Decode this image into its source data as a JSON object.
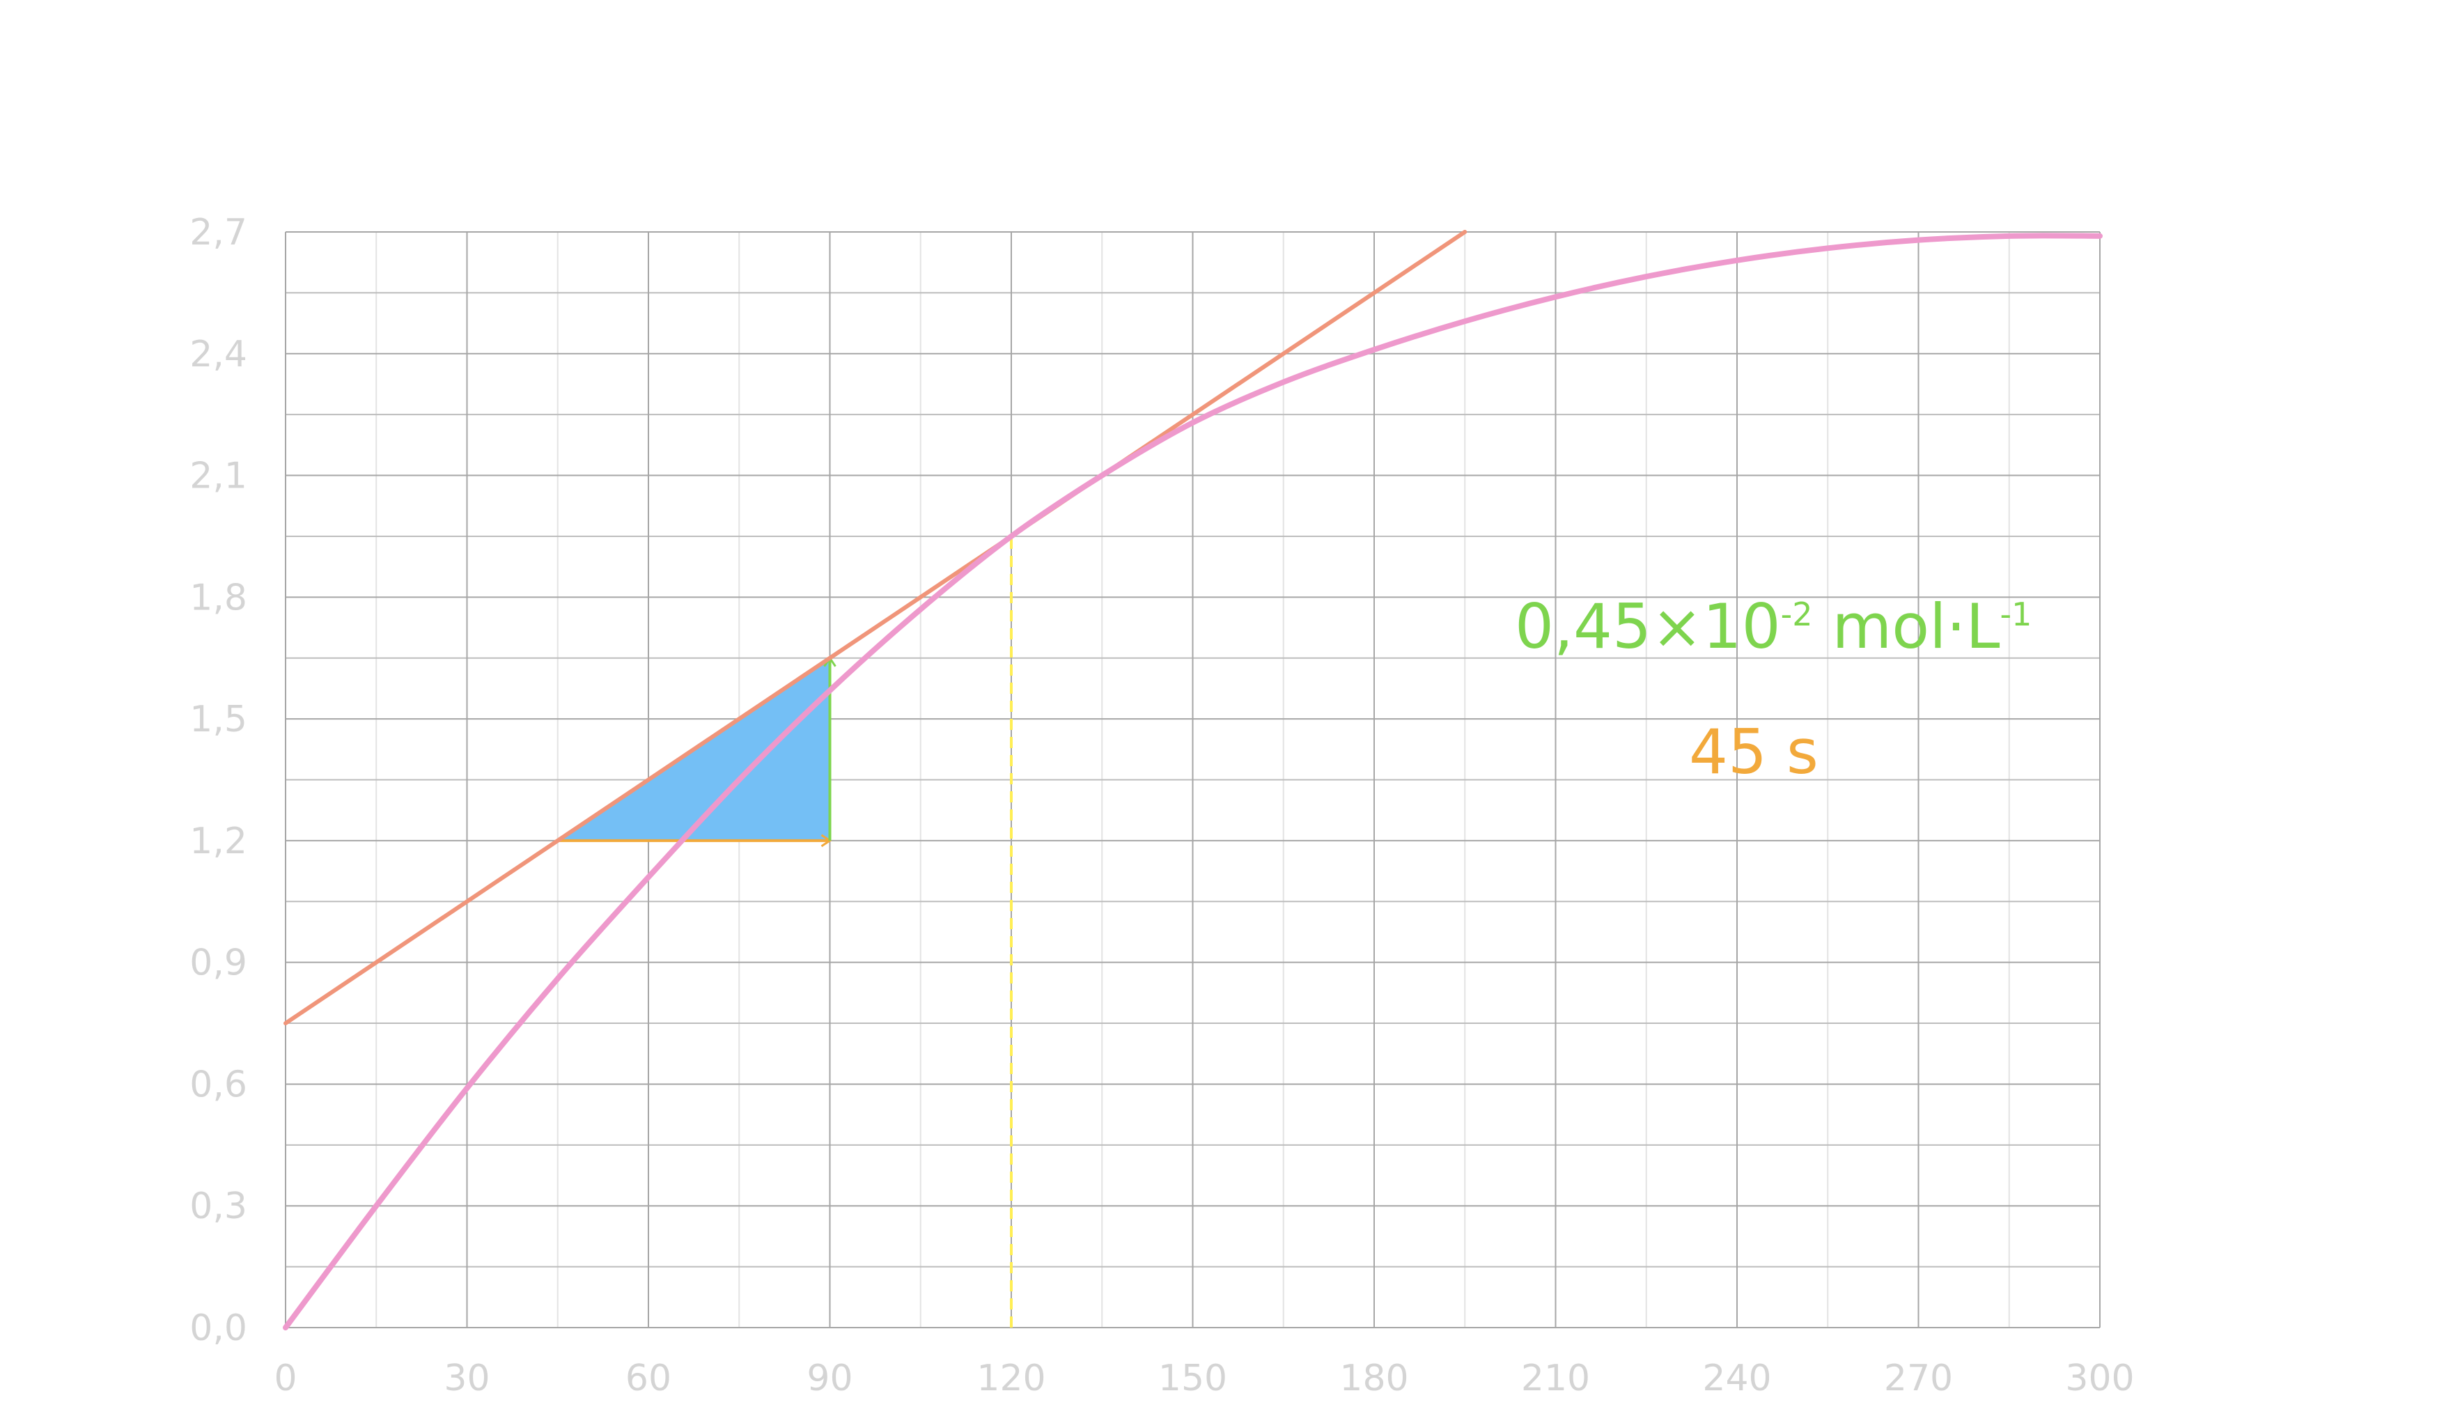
{
  "chart_data": {
    "type": "line",
    "title": "",
    "xlabel": "",
    "ylabel": "",
    "xlim": [
      0,
      300
    ],
    "ylim": [
      0.0,
      2.7
    ],
    "x_ticks": [
      {
        "value": 0,
        "label": "0"
      },
      {
        "value": 30,
        "label": "30"
      },
      {
        "value": 60,
        "label": "60"
      },
      {
        "value": 90,
        "label": "90"
      },
      {
        "value": 120,
        "label": "120"
      },
      {
        "value": 150,
        "label": "150"
      },
      {
        "value": 180,
        "label": "180"
      },
      {
        "value": 210,
        "label": "210"
      },
      {
        "value": 240,
        "label": "240"
      },
      {
        "value": 270,
        "label": "270"
      },
      {
        "value": 300,
        "label": "300"
      }
    ],
    "y_ticks": [
      {
        "value": 0.0,
        "label": "0,0"
      },
      {
        "value": 0.3,
        "label": "0,3"
      },
      {
        "value": 0.6,
        "label": "0,6"
      },
      {
        "value": 0.9,
        "label": "0,9"
      },
      {
        "value": 1.2,
        "label": "1,2"
      },
      {
        "value": 1.5,
        "label": "1,5"
      },
      {
        "value": 1.8,
        "label": "1,8"
      },
      {
        "value": 2.1,
        "label": "2,1"
      },
      {
        "value": 2.4,
        "label": "2,4"
      },
      {
        "value": 2.7,
        "label": "2,7"
      }
    ],
    "grid": {
      "major_x_step": 30,
      "minor_x_step": 15,
      "major_y_step": 0.3,
      "minor_y_step": 0.15
    },
    "series": [
      {
        "color": "#ee99cc",
        "x": [
          0,
          15,
          30,
          45,
          60,
          75,
          90,
          105,
          120,
          135,
          150,
          165,
          180,
          195,
          210,
          225,
          240,
          255,
          270,
          285,
          300
        ],
        "y": [
          0.0,
          0.3,
          0.59,
          0.86,
          1.11,
          1.35,
          1.57,
          1.77,
          1.95,
          2.1,
          2.23,
          2.33,
          2.41,
          2.48,
          2.54,
          2.59,
          2.63,
          2.66,
          2.68,
          2.69,
          2.69
        ]
      }
    ],
    "tangent": {
      "color": "#f0957a",
      "x": [
        0,
        195
      ],
      "y": [
        0.75,
        2.7
      ]
    },
    "vertical_marker": {
      "x": 120,
      "y_from": 0.0,
      "y_to": 1.95,
      "color": "#ffee55"
    },
    "slope_triangle": {
      "x_from": 45,
      "x_to": 90,
      "y_from": 1.2,
      "y_to": 1.65,
      "fill": "#74bff5",
      "run_color": "#f2a93b",
      "rise_color": "#7ed44e"
    },
    "annotations": [
      {
        "id": "rise",
        "base": "0,45×10",
        "exp1": "-2",
        "mid": " mol·L",
        "exp2": "-1",
        "color": "#7ed44e"
      },
      {
        "id": "run",
        "text": "45 s",
        "color": "#f2a93b"
      }
    ]
  }
}
